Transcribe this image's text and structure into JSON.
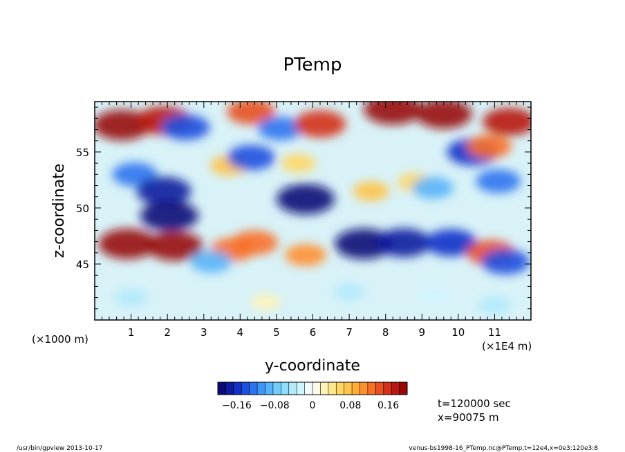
{
  "chart_data": {
    "type": "heatmap",
    "title": "PTemp",
    "xlabel": "y-coordinate",
    "ylabel": "z-coordinate",
    "x_unit_left": "(×1000 m)",
    "x_unit_right": "(×1E4 m)",
    "xlim": [
      0,
      12
    ],
    "ylim": [
      40,
      59.5
    ],
    "x_ticks": [
      {
        "value": 1,
        "label": "1"
      },
      {
        "value": 2,
        "label": "2"
      },
      {
        "value": 3,
        "label": "3"
      },
      {
        "value": 4,
        "label": "4"
      },
      {
        "value": 5,
        "label": "5"
      },
      {
        "value": 6,
        "label": "6"
      },
      {
        "value": 7,
        "label": "7"
      },
      {
        "value": 8,
        "label": "8"
      },
      {
        "value": 9,
        "label": "9"
      },
      {
        "value": 10,
        "label": "10"
      },
      {
        "value": 11,
        "label": "11"
      }
    ],
    "y_ticks": [
      {
        "value": 45,
        "label": "45"
      },
      {
        "value": 50,
        "label": "50"
      },
      {
        "value": 55,
        "label": "55"
      }
    ],
    "colorbar": {
      "min": -0.2,
      "max": 0.2,
      "ticks": [
        {
          "value": -0.16,
          "label": "−0.16"
        },
        {
          "value": -0.08,
          "label": "−0.08"
        },
        {
          "value": 0,
          "label": "0"
        },
        {
          "value": 0.08,
          "label": "0.08"
        },
        {
          "value": 0.16,
          "label": "0.16"
        }
      ],
      "colors": [
        "#0a0a78",
        "#0c1ca0",
        "#1030c8",
        "#1e50e0",
        "#2c74f0",
        "#3e96f8",
        "#56b4fa",
        "#72ccfc",
        "#90dcfc",
        "#b0eafc",
        "#d0f4fc",
        "#eefbff",
        "#fffbe8",
        "#fff4b8",
        "#ffe88c",
        "#ffd864",
        "#ffc448",
        "#ffac38",
        "#ff9030",
        "#f87028",
        "#e85020",
        "#d43018",
        "#b81810",
        "#980808"
      ]
    },
    "features": [
      {
        "y": 0.75,
        "z": 57.4,
        "value": 0.2
      },
      {
        "y": 1.9,
        "z": 57.8,
        "value": 0.18
      },
      {
        "y": 2.5,
        "z": 57.2,
        "value": -0.14
      },
      {
        "y": 4.3,
        "z": 58.6,
        "value": 0.14
      },
      {
        "y": 5.1,
        "z": 57.1,
        "value": -0.12
      },
      {
        "y": 6.2,
        "z": 57.5,
        "value": 0.16
      },
      {
        "y": 8.2,
        "z": 58.8,
        "value": 0.2
      },
      {
        "y": 9.6,
        "z": 58.4,
        "value": 0.19
      },
      {
        "y": 11.4,
        "z": 57.7,
        "value": 0.17
      },
      {
        "y": 1.1,
        "z": 53.0,
        "value": -0.12
      },
      {
        "y": 1.9,
        "z": 51.5,
        "value": -0.18
      },
      {
        "y": 2.05,
        "z": 49.3,
        "value": -0.2
      },
      {
        "y": 3.7,
        "z": 53.8,
        "value": 0.08
      },
      {
        "y": 4.3,
        "z": 54.5,
        "value": -0.14
      },
      {
        "y": 5.6,
        "z": 54.0,
        "value": 0.06
      },
      {
        "y": 5.8,
        "z": 50.8,
        "value": -0.2
      },
      {
        "y": 7.6,
        "z": 51.5,
        "value": 0.07
      },
      {
        "y": 8.8,
        "z": 52.3,
        "value": 0.06
      },
      {
        "y": 9.3,
        "z": 51.8,
        "value": -0.1
      },
      {
        "y": 10.4,
        "z": 55.0,
        "value": -0.16
      },
      {
        "y": 10.85,
        "z": 55.5,
        "value": 0.12
      },
      {
        "y": 11.1,
        "z": 52.4,
        "value": -0.12
      },
      {
        "y": 0.9,
        "z": 46.8,
        "value": 0.2
      },
      {
        "y": 2.2,
        "z": 46.6,
        "value": 0.19
      },
      {
        "y": 3.8,
        "z": 46.3,
        "value": 0.12
      },
      {
        "y": 4.4,
        "z": 46.9,
        "value": 0.13
      },
      {
        "y": 5.8,
        "z": 45.8,
        "value": 0.1
      },
      {
        "y": 7.4,
        "z": 46.8,
        "value": -0.2
      },
      {
        "y": 8.5,
        "z": 46.9,
        "value": -0.18
      },
      {
        "y": 9.8,
        "z": 46.9,
        "value": -0.16
      },
      {
        "y": 10.9,
        "z": 46.0,
        "value": 0.14
      },
      {
        "y": 11.3,
        "z": 45.2,
        "value": -0.14
      },
      {
        "y": 3.2,
        "z": 45.2,
        "value": -0.1
      },
      {
        "y": 1.0,
        "z": 42.0,
        "value": -0.05
      },
      {
        "y": 4.7,
        "z": 41.6,
        "value": 0.03
      },
      {
        "y": 7.0,
        "z": 42.5,
        "value": -0.04
      },
      {
        "y": 9.3,
        "z": 42.2,
        "value": -0.03
      },
      {
        "y": 11.0,
        "z": 41.3,
        "value": -0.05
      }
    ]
  },
  "info": {
    "time": "t=120000 sec",
    "position": "x=90075 m"
  },
  "footer": {
    "left": "/usr/bin/gpview   2013-10-17",
    "right": "venus-bs1998-16_PTemp.nc@PTemp,t=12e4,x=0e3:120e3:8"
  }
}
